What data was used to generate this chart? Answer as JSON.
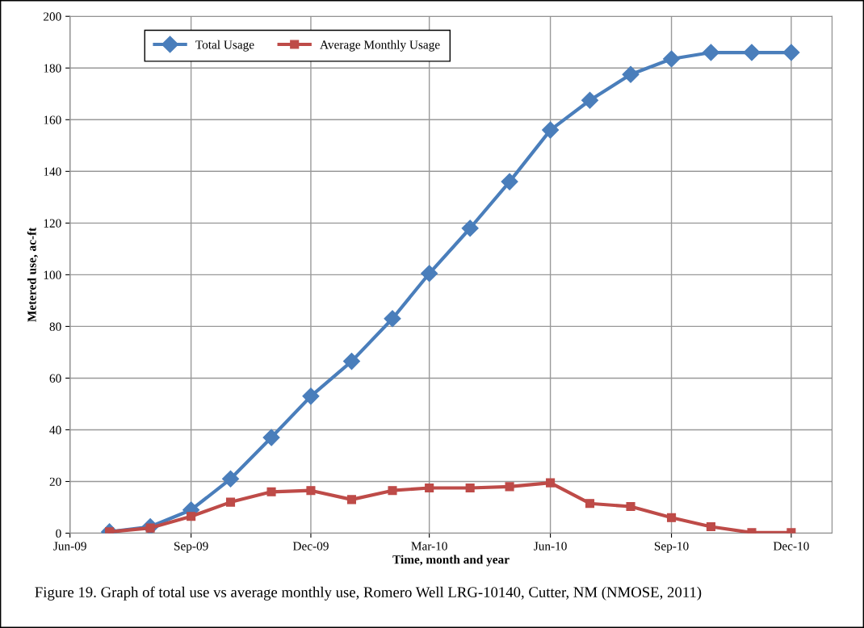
{
  "chart_data": {
    "type": "line",
    "xlabel": "Time, month and year",
    "ylabel": "Metered use, ac-ft",
    "x": [
      "2009-07",
      "2009-08",
      "2009-09",
      "2009-10",
      "2009-11",
      "2009-12",
      "2010-01",
      "2010-02",
      "2010-03",
      "2010-04",
      "2010-05",
      "2010-06",
      "2010-07",
      "2010-08",
      "2010-09",
      "2010-10",
      "2010-11",
      "2010-12"
    ],
    "series": [
      {
        "name": "Total Usage",
        "color": "#4a7ebb",
        "marker": "diamond",
        "values": [
          0.5,
          2.5,
          9,
          21,
          37,
          53,
          66.5,
          83,
          100.5,
          118,
          136,
          156,
          167.5,
          177.5,
          183.5,
          186,
          186,
          186
        ]
      },
      {
        "name": "Average Monthly Usage",
        "color": "#be4b48",
        "marker": "square",
        "values": [
          0.5,
          2,
          6.5,
          12,
          16,
          16.5,
          13,
          16.5,
          17.5,
          17.5,
          18,
          19.5,
          11.5,
          10.3,
          6,
          2.5,
          0.2,
          0.2
        ]
      }
    ],
    "xlim": [
      "2009-06",
      "2011-01"
    ],
    "xticks": [
      {
        "value": "2009-06",
        "label": "Jun-09"
      },
      {
        "value": "2009-09",
        "label": "Sep-09"
      },
      {
        "value": "2009-12",
        "label": "Dec-09"
      },
      {
        "value": "2010-03",
        "label": "Mar-10"
      },
      {
        "value": "2010-06",
        "label": "Jun-10"
      },
      {
        "value": "2010-09",
        "label": "Sep-10"
      },
      {
        "value": "2010-12",
        "label": "Dec-10"
      }
    ],
    "ylim": [
      0,
      200
    ],
    "yticks": [
      0,
      20,
      40,
      60,
      80,
      100,
      120,
      140,
      160,
      180,
      200
    ],
    "grid": true,
    "legend": "top left",
    "line_style": "solid",
    "annotations": [
      "Figure 19. Graph of total use vs average monthly use, Romero Well LRG-10140, Cutter, NM (NMOSE, 2011)"
    ]
  }
}
